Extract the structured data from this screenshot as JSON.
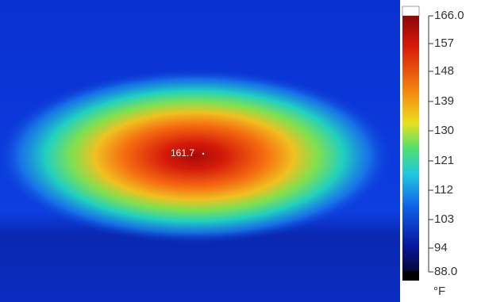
{
  "image": {
    "spot_label": "161.7"
  },
  "colorbar": {
    "ticks": [
      "166.0",
      "157",
      "148",
      "139",
      "130",
      "121",
      "112",
      "103",
      "94",
      "88.0"
    ],
    "unit": "°F"
  }
}
